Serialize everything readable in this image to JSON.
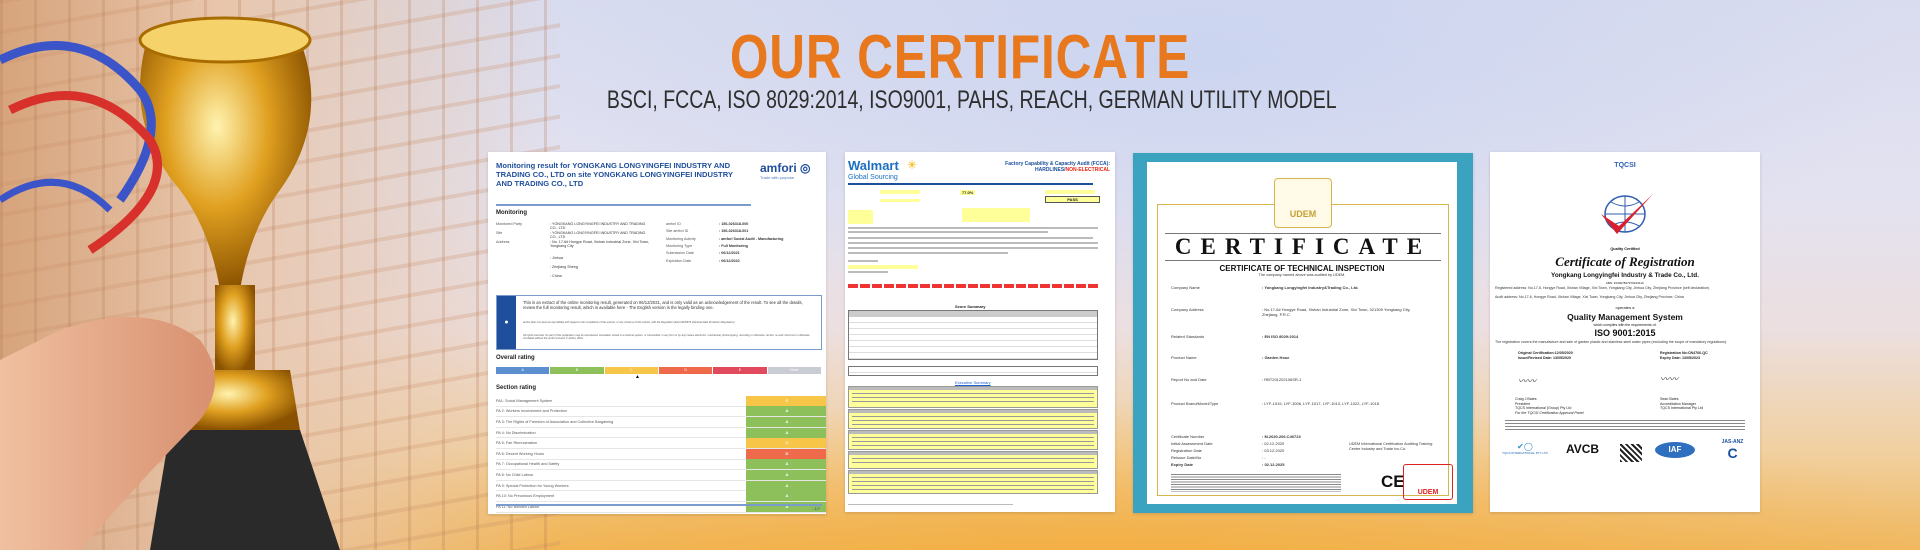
{
  "header": {
    "title": "OUR CERTIFICATE",
    "subtitle": "BSCI, FCCA, ISO 8029:2014, ISO9001, PAHS, REACH, GERMAN UTILITY MODEL"
  },
  "colors": {
    "title": "#e8781e",
    "subtitle": "#2e2e2e",
    "udem_frame": "#3ba3bf"
  },
  "amfori": {
    "title": "Monitoring result for YONGKANG LONGYINGFEI INDUSTRY AND TRADING CO., LTD on site YONGKANG LONGYINGFEI INDUSTRY AND TRADING CO., LTD",
    "logo": "amfori",
    "tagline": "Trade with purpose",
    "monitoring_heading": "Monitoring",
    "left_fields": [
      {
        "label": "Monitored Party",
        "value": ": YONGKANG LONGYINGFEI INDUSTRY AND TRADING CO., LTD"
      },
      {
        "label": "Site",
        "value": ": YONGKANG LONGYINGFEI INDUSTRY AND TRADING CO., LTD"
      },
      {
        "label": "Address",
        "value": ": No. 17-6# Hongye Road, Xishan Industrial Zone, Xixi Town, Yongkang City"
      },
      {
        "label": "",
        "value": ": Jinhua"
      },
      {
        "label": "",
        "value": ": Zhejiang Sheng"
      },
      {
        "label": "",
        "value": ": China"
      }
    ],
    "right_fields": [
      {
        "label": "amfori ID",
        "value": ": 156-026318-000"
      },
      {
        "label": "Site amfori ID",
        "value": ": 156-026318-001"
      },
      {
        "label": "Monitoring Activity",
        "value": ": amfori Social Audit - Manufacturing"
      },
      {
        "label": "Monitoring Type",
        "value": ": Full Monitoring"
      },
      {
        "label": "Submission Date",
        "value": ": 06/12/2021"
      },
      {
        "label": "Expiration Date",
        "value": ": 06/12/2022"
      }
    ],
    "info_text": "This is an extract of the online monitoring result, generated on 06/12/2021, and is only valid as an acknowledgement of the result. To see all the details, review the full monitoring result, which is available here - The English version is the legally binding one.",
    "info_fine_1": "amfori does not assume any liability with regard to the compliance of this extract, or any versions of this extract, with the Regulation (EU) 2016/679 (General Data Protection Regulation).",
    "info_fine_2": "All rights reserved. No part of this publication may be reproduced, translated, stored in a retrieval system, or transmitted, in any form or by any means electronic, mechanical, photocopying, recording or otherwise, be lent, re-sold, hired out or otherwise circulated without the amfori consent © amfori, 2021.",
    "overall_heading": "Overall rating",
    "overall_scale": [
      {
        "label": "A",
        "color": "#5b8fd0"
      },
      {
        "label": "B",
        "color": "#8dc05a"
      },
      {
        "label": "C",
        "color": "#f7c548"
      },
      {
        "label": "D",
        "color": "#ee6a4a"
      },
      {
        "label": "E",
        "color": "#e04a5c"
      },
      {
        "label": "None",
        "color": "#c9ccd3"
      }
    ],
    "overall_rating": "C",
    "section_heading": "Section rating",
    "sections": [
      {
        "label": "PA1: Social Management System",
        "grade": "C"
      },
      {
        "label": "PA 2: Workers Involvement and Protection",
        "grade": "A"
      },
      {
        "label": "PA 3: The Rights of Freedom of Association and Collective Bargaining",
        "grade": "A"
      },
      {
        "label": "PA 4: No Discrimination",
        "grade": "A"
      },
      {
        "label": "PA 5: Fair Remuneration",
        "grade": "C"
      },
      {
        "label": "PA 6: Decent Working Hours",
        "grade": "D"
      },
      {
        "label": "PA 7: Occupational Health and Safety",
        "grade": "A"
      },
      {
        "label": "PA 8: No Child Labour",
        "grade": "A"
      },
      {
        "label": "PA 9: Special Protection for Young Workers",
        "grade": "A"
      },
      {
        "label": "PA 10: No Precarious Employment",
        "grade": "A"
      },
      {
        "label": "PA 11: No Bonded Labour",
        "grade": "A"
      }
    ],
    "page": "- 1/7"
  },
  "walmart": {
    "logo": "Walmart",
    "logo_sub": "Global Sourcing",
    "heading": "Factory Capability & Capacity Audit (FCCA):",
    "heading2a": "HARDLINES/",
    "heading2b": "NON-ELECTRICAL",
    "score": "77.0%",
    "result": "PASS",
    "score_summary": "Score Summary",
    "executive": "Executive Summary"
  },
  "udem": {
    "logo": "UDEM",
    "title": "CERTIFICATE",
    "subtitle": "CERTIFICATE OF TECHNICAL INSPECTION",
    "note": "The company named above was audited by UDEM.",
    "fields": [
      {
        "label": "Company Name",
        "value": ": Yongkang Longyingfei Industry&Trading Co., Ltd."
      },
      {
        "label": "Company Address",
        "value": ": No.17-6# Hongye Road, Xishan Industrial Zone, Xixi Town, 321309 Yongkang City, Zhejiang, P.R.C."
      },
      {
        "label": "Related Standards",
        "value": ": EN ISO 8029:2014"
      },
      {
        "label": "Product Name",
        "value": ": Garden Hose"
      },
      {
        "label": "Report No and Date",
        "value": ": RBT201202106SR-1"
      },
      {
        "label": "Product Brand/Model/Type",
        "value": ": LYF-1019, LYF-1006, LYF-1017, LYF-1013, LYF-1022, LYF-1018"
      },
      {
        "label": "Certificate Number",
        "value": ": M.2020.206.C40723"
      },
      {
        "label": "Initial Assessment Date",
        "value": ": 02.12.2020"
      },
      {
        "label": "Registration Date",
        "value": ": 03.12.2020"
      },
      {
        "label": "Reissue Date/No",
        "value": ": -"
      },
      {
        "label": "Expiry Date",
        "value": ": 02.12.2025"
      }
    ],
    "signer": "UDEM International Certification Auditing Training Centre Industry and Trade Inc.Co.",
    "ce": "CE"
  },
  "tqcsi": {
    "logo": "TQCSI",
    "quality": "Quality Certified",
    "title": "Certificate of Registration",
    "company": "Yongkang Longyingfei Industry & Trade Co., Ltd.",
    "abn": "ABN: 91330784797024311C",
    "reg_address": "Registered address: No.17-6, Hongye Road, Xishan Village, Xixi Town, Yongkang City, Jinhua City, Zhejiang Province (self declaration)",
    "audit_address": "Audit address: No.17-6, Hongye Road, Xishan Village, Xixi Town, Yongkang City, Jinhua City, Zhejiang Province, China",
    "operates": "operates a",
    "system": "Quality Management System",
    "complies": "which complies with the requirements of:",
    "standard": "ISO 9001:2015",
    "scope": "The registration covers the manufacture and sale of garden plastic and stainless steel water pipes (excluding the scope of mandatory regulations).",
    "left_block": [
      "Original Certification:12/05/2020",
      "Issue/Revised Date: 13/05/2020"
    ],
    "right_block": [
      "Registration No:CN4766-QC",
      "Expiry Date: 13/05/2023"
    ],
    "sig_left": [
      "Craig J Bates",
      "President",
      "TQCS International (Group) Pty Ltd",
      "For the TQCSI Certification Approval Panel"
    ],
    "sig_right": [
      "Sean Bates",
      "Accreditation Manager",
      "TQCS International Pty Ltd"
    ],
    "badges": [
      "TQCS INTERNATIONAL PTY LTD",
      "AVCB",
      "IAF",
      "JAS-ANZ"
    ]
  }
}
